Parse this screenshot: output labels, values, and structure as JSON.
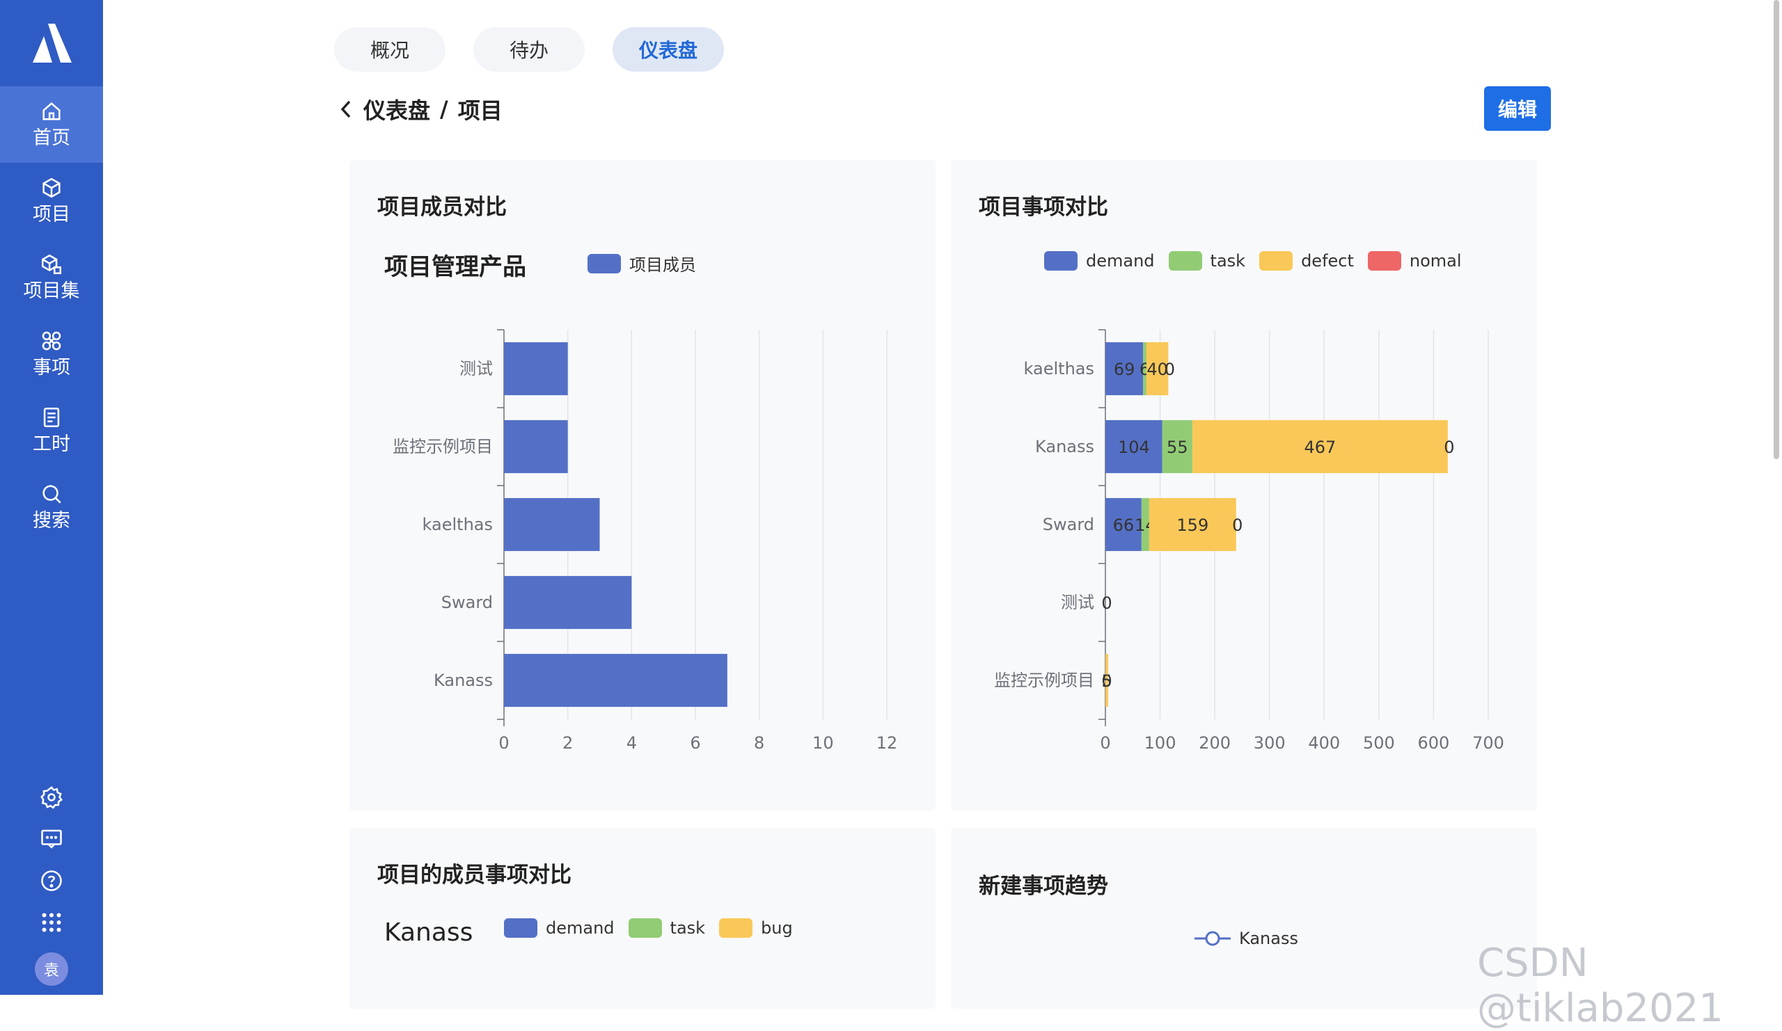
{
  "app": {
    "tabs": [
      {
        "label": "概况"
      },
      {
        "label": "待办"
      },
      {
        "label": "仪表盘"
      }
    ],
    "breadcrumb": {
      "parent": "仪表盘",
      "sep": "/",
      "current": "项目"
    },
    "edit_label": "编辑",
    "watermark": "CSDN @tiklab2021"
  },
  "sidebar": {
    "items": [
      {
        "label": "首页",
        "icon": "home-icon"
      },
      {
        "label": "项目",
        "icon": "cube-icon"
      },
      {
        "label": "项目集",
        "icon": "cube-set-icon"
      },
      {
        "label": "事项",
        "icon": "issue-icon"
      },
      {
        "label": "工时",
        "icon": "document-icon"
      },
      {
        "label": "搜索",
        "icon": "search-icon"
      }
    ],
    "avatar_text": "袁",
    "accent": "#2f5bc4"
  },
  "cards": {
    "members": {
      "title": "项目成员对比",
      "subtitle": "项目管理产品"
    },
    "issues": {
      "title": "项目事项对比"
    },
    "member_issues": {
      "title": "项目的成员事项对比",
      "subtitle": "Kanass"
    },
    "trend": {
      "title": "新建事项趋势"
    }
  },
  "chart_data": [
    {
      "type": "bar",
      "orientation": "horizontal",
      "categories": [
        "测试",
        "监控示例项目",
        "kaelthas",
        "Sward",
        "Kanass"
      ],
      "series": [
        {
          "name": "项目成员",
          "values": [
            2,
            2,
            3,
            4,
            7
          ],
          "color": "#5470c6"
        }
      ],
      "xlim": [
        0,
        12
      ],
      "xticks": [
        "0",
        "2",
        "4",
        "6",
        "8",
        "10",
        "12"
      ],
      "grid": true,
      "legend": "top"
    },
    {
      "type": "bar",
      "orientation": "horizontal",
      "stacked": true,
      "categories": [
        "kaelthas",
        "Kanass",
        "Sward",
        "测试",
        "监控示例项目"
      ],
      "series": [
        {
          "name": "demand",
          "values": [
            69,
            104,
            66,
            0,
            0
          ],
          "labels": [
            "69",
            "104",
            "66",
            "0",
            "0"
          ],
          "color": "#5470c6"
        },
        {
          "name": "task",
          "values": [
            6,
            55,
            14,
            0,
            0
          ],
          "labels": [
            "6",
            "55",
            "14",
            "",
            ""
          ],
          "color": "#91cc75"
        },
        {
          "name": "defect",
          "values": [
            40,
            467,
            159,
            0,
            5
          ],
          "labels": [
            "40",
            "467",
            "159",
            "",
            "5"
          ],
          "color": "#fac858"
        },
        {
          "name": "nomal",
          "values": [
            0,
            0,
            0,
            0,
            0
          ],
          "labels": [
            "0",
            "0",
            "0",
            "",
            ""
          ],
          "color": "#ee6666"
        }
      ],
      "xlim": [
        0,
        700
      ],
      "xticks": [
        "0",
        "100",
        "200",
        "300",
        "400",
        "500",
        "600",
        "700"
      ],
      "grid": true,
      "legend": "top"
    },
    {
      "type": "bar",
      "series": [
        {
          "name": "demand",
          "color": "#5470c6"
        },
        {
          "name": "task",
          "color": "#91cc75"
        },
        {
          "name": "bug",
          "color": "#fac858"
        }
      ],
      "legend": "top"
    },
    {
      "type": "line",
      "series": [
        {
          "name": "Kanass",
          "color": "#5470c6"
        }
      ],
      "legend": "top"
    }
  ]
}
